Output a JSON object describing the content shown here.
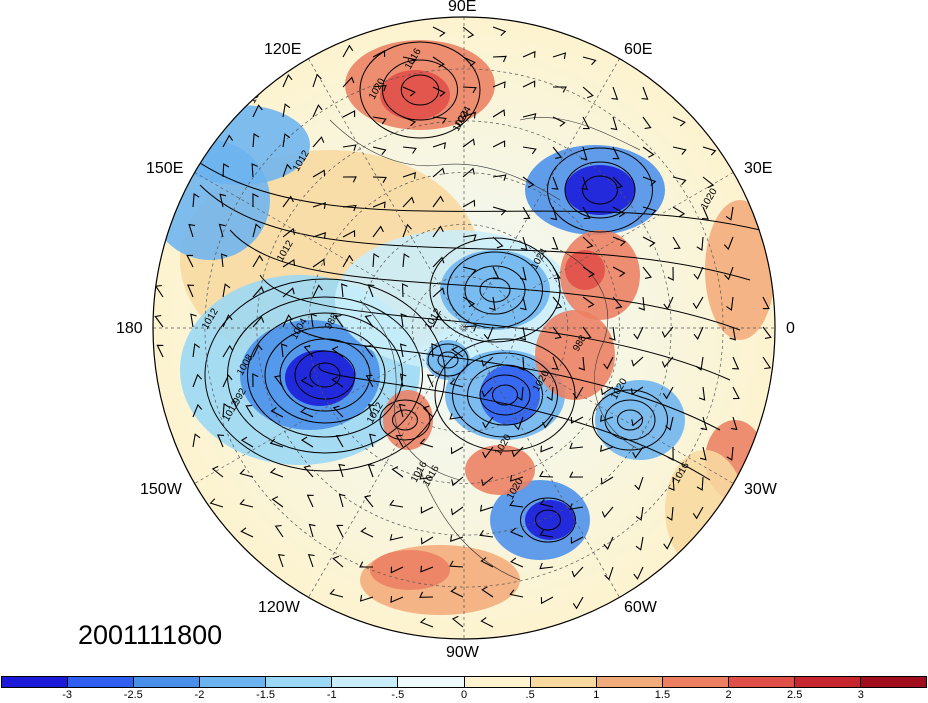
{
  "map": {
    "projection": "north-polar-stereographic",
    "date": "2001111800",
    "longitude_labels": [
      "90E",
      "60E",
      "30E",
      "0",
      "30W",
      "60W",
      "90W",
      "120W",
      "150W",
      "180",
      "150E",
      "120E"
    ],
    "contour_labels": [
      "1016",
      "1020",
      "1024",
      "1008",
      "1012",
      "1012",
      "1012",
      "1012",
      "988",
      "1004",
      "1008",
      "992",
      "1012",
      "1012",
      "1016",
      "1020",
      "1020",
      "1016",
      "1020",
      "1024",
      "1020",
      "988",
      "1020",
      "1012",
      "1016",
      "1024"
    ],
    "colorbar": {
      "ticks": [
        "-3",
        "-2.5",
        "-2",
        "-1.5",
        "-1",
        "-.5",
        "0",
        ".5",
        "1",
        "1.5",
        "2",
        "2.5",
        "3"
      ],
      "colors": [
        "#1a1ad8",
        "#2f5ff0",
        "#4a90ea",
        "#6cb4f0",
        "#9ad8f5",
        "#c9eefa",
        "#eef9fa",
        "#fdf3cf",
        "#f8d9a0",
        "#f2ab7a",
        "#ec7f62",
        "#e04e48",
        "#c8262f",
        "#a10d1c"
      ]
    }
  }
}
